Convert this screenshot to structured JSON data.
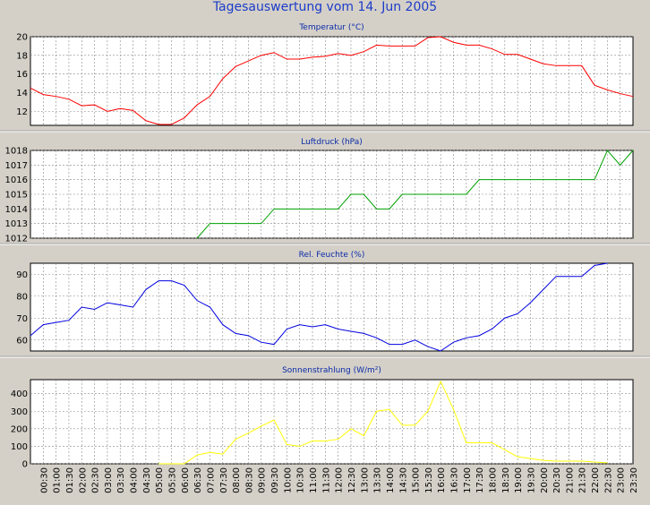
{
  "title": "Tagesauswertung vom 14. Jun 2005",
  "x_ticks": [
    "00:30",
    "01:00",
    "01:30",
    "02:00",
    "02:30",
    "03:00",
    "03:30",
    "04:00",
    "04:30",
    "05:00",
    "05:30",
    "06:00",
    "06:30",
    "07:00",
    "07:30",
    "08:00",
    "08:30",
    "09:00",
    "09:30",
    "10:00",
    "10:30",
    "11:00",
    "11:30",
    "12:00",
    "12:30",
    "13:00",
    "13:30",
    "14:00",
    "14:30",
    "15:00",
    "15:30",
    "16:00",
    "16:30",
    "17:00",
    "17:30",
    "18:00",
    "18:30",
    "19:00",
    "19:30",
    "20:00",
    "20:30",
    "21:00",
    "21:30",
    "22:00",
    "22:30",
    "23:00",
    "23:30"
  ],
  "chart_data": [
    {
      "type": "line",
      "title": "Temperatur (°C)",
      "ylim": [
        10.5,
        20
      ],
      "yticks": [
        12,
        14,
        16,
        18,
        20
      ],
      "grid": true,
      "color": "#ff0000",
      "series": [
        {
          "values": [
            14.5,
            13.8,
            13.6,
            13.3,
            12.6,
            12.7,
            12.0,
            12.3,
            12.1,
            11.0,
            10.6,
            10.6,
            11.3,
            12.7,
            13.6,
            15.5,
            16.8,
            17.4,
            18.0,
            18.3,
            17.6,
            17.6,
            17.8,
            17.9,
            18.2,
            18.0,
            18.4,
            19.1,
            19.0,
            19.0,
            19.0,
            19.9,
            20.0,
            19.4,
            19.1,
            19.1,
            18.7,
            18.1,
            18.1,
            17.6,
            17.1,
            16.9,
            16.9,
            16.9,
            14.8,
            14.3,
            13.9,
            13.6
          ]
        }
      ]
    },
    {
      "type": "line",
      "title": "Luftdruck (hPa)",
      "ylim": [
        1012,
        1018
      ],
      "yticks": [
        1012,
        1013,
        1014,
        1015,
        1016,
        1017,
        1018
      ],
      "grid": true,
      "color": "#00a000",
      "series": [
        {
          "values": [
            null,
            null,
            null,
            null,
            null,
            null,
            null,
            null,
            null,
            null,
            null,
            null,
            null,
            1012,
            1013,
            1013,
            1013,
            1013,
            1013,
            1014,
            1014,
            1014,
            1014,
            1014,
            1014,
            1015,
            1015,
            1014,
            1014,
            1015,
            1015,
            1015,
            1015,
            1015,
            1015,
            1016,
            1016,
            1016,
            1016,
            1016,
            1016,
            1016,
            1016,
            1016,
            1016,
            1018,
            1017,
            1018
          ]
        }
      ]
    },
    {
      "type": "line",
      "title": "Rel. Feuchte (%)",
      "ylim": [
        55,
        95
      ],
      "yticks": [
        60,
        70,
        80,
        90
      ],
      "grid": true,
      "color": "#0000e0",
      "series": [
        {
          "values": [
            62,
            67,
            68,
            69,
            75,
            74,
            77,
            76,
            75,
            83,
            87,
            87,
            85,
            78,
            75,
            67,
            63,
            62,
            59,
            58,
            65,
            67,
            66,
            67,
            65,
            64,
            63,
            61,
            58,
            58,
            60,
            57,
            55,
            59,
            61,
            62,
            65,
            70,
            72,
            77,
            83,
            89,
            89,
            89,
            94,
            95,
            null,
            null
          ]
        }
      ]
    },
    {
      "type": "line",
      "title": "Sonnenstrahlung (W/m²)",
      "ylim": [
        0,
        480
      ],
      "yticks": [
        0,
        100,
        200,
        300,
        400
      ],
      "grid": true,
      "color": "#ffff00",
      "series": [
        {
          "values": [
            null,
            null,
            null,
            null,
            null,
            null,
            null,
            null,
            null,
            null,
            0,
            0,
            0,
            50,
            65,
            55,
            140,
            175,
            215,
            250,
            110,
            100,
            130,
            130,
            140,
            200,
            160,
            300,
            310,
            220,
            220,
            300,
            470,
            310,
            120,
            120,
            120,
            80,
            40,
            30,
            20,
            15,
            15,
            15,
            10,
            5,
            null,
            null
          ]
        }
      ]
    }
  ]
}
